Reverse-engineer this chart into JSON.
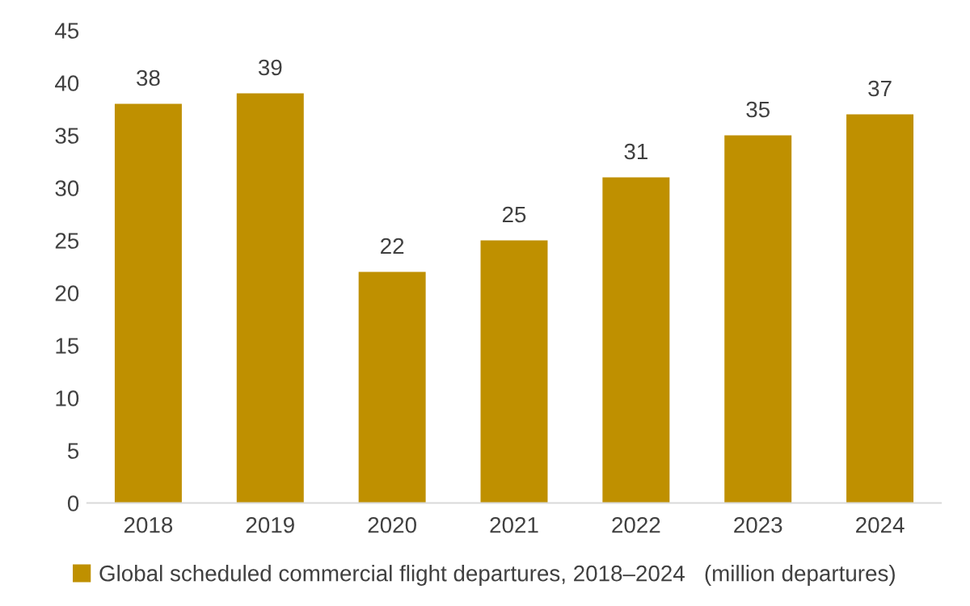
{
  "chart_data": {
    "type": "bar",
    "categories": [
      "2018",
      "2019",
      "2020",
      "2021",
      "2022",
      "2023",
      "2024"
    ],
    "series": [
      {
        "name": "Global scheduled commercial flight departures, 2018–2024   (million departures)",
        "color": "#bf9000",
        "values": [
          38,
          39,
          22,
          25,
          31,
          35,
          37
        ]
      }
    ],
    "ylim": [
      0,
      45
    ],
    "yticks": [
      0,
      5,
      10,
      15,
      20,
      25,
      30,
      35,
      40,
      45
    ],
    "data_labels": true,
    "legend": "bottom",
    "grid": false
  }
}
